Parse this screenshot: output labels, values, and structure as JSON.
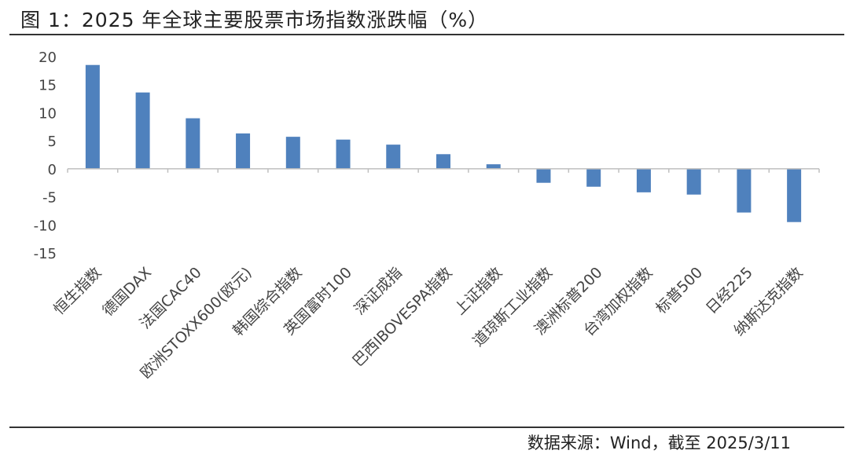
{
  "header": {
    "title": "图 1：2025 年全球主要股票市场指数涨跌幅（%）"
  },
  "footer": {
    "source": "数据来源：Wind，截至 2025/3/11"
  },
  "colors": {
    "bar": "#4f81bd",
    "axis": "#bfbfbf"
  },
  "chart_data": {
    "type": "bar",
    "title": "图 1：2025 年全球主要股票市场指数涨跌幅（%）",
    "xlabel": "",
    "ylabel": "",
    "ylim": [
      -15,
      20
    ],
    "yticks": [
      "20",
      "15",
      "10",
      "5",
      "0",
      "-5",
      "-10",
      "-15"
    ],
    "ytick_values": [
      20,
      15,
      10,
      5,
      0,
      -5,
      -10,
      -15
    ],
    "grid": false,
    "legend": "none",
    "categories": [
      "恒生指数",
      "德国DAX",
      "法国CAC40",
      "欧洲STOXX600(欧元)",
      "韩国综合指数",
      "英国富时100",
      "深证成指",
      "巴西IBOVESPA指数",
      "上证指数",
      "道琼斯工业指数",
      "澳洲标普200",
      "台湾加权指数",
      "标普500",
      "日经225",
      "纳斯达克指数"
    ],
    "values": [
      18.5,
      13.6,
      9.0,
      6.3,
      5.7,
      5.2,
      4.3,
      2.6,
      0.8,
      -2.5,
      -3.2,
      -4.2,
      -4.6,
      -7.8,
      -9.5
    ]
  }
}
